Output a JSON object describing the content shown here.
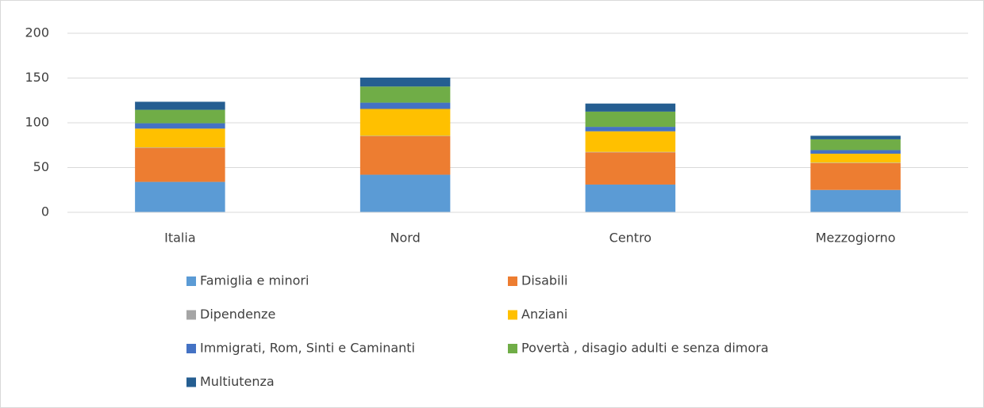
{
  "chart_data": {
    "type": "stacked_bar",
    "categories": [
      "Italia",
      "Nord",
      "Centro",
      "Mezzogiorno"
    ],
    "series": [
      {
        "name": "Famiglia e minori",
        "color": "#5b9bd5",
        "values": [
          34,
          42,
          31,
          25
        ]
      },
      {
        "name": "Disabili",
        "color": "#ed7d31",
        "values": [
          38,
          43,
          36,
          30
        ]
      },
      {
        "name": "Dipendenze",
        "color": "#a5a5a5",
        "values": [
          0.5,
          0.5,
          0.5,
          0.5
        ]
      },
      {
        "name": "Anziani",
        "color": "#ffc000",
        "values": [
          21,
          30,
          23,
          10
        ]
      },
      {
        "name": "Immigrati, Rom, Sinti e Caminanti",
        "color": "#4472c4",
        "values": [
          6,
          7,
          5,
          4
        ]
      },
      {
        "name": "Povertà , disagio adulti e senza dimora",
        "color": "#70ad47",
        "values": [
          15,
          18,
          17,
          12
        ]
      },
      {
        "name": "Multiutenza",
        "color": "#255e91",
        "values": [
          9,
          10,
          9,
          4
        ]
      }
    ],
    "ylim": [
      0,
      200
    ],
    "yticks": [
      0,
      50,
      100,
      150,
      200
    ],
    "grid": true,
    "legend": "bottom"
  }
}
